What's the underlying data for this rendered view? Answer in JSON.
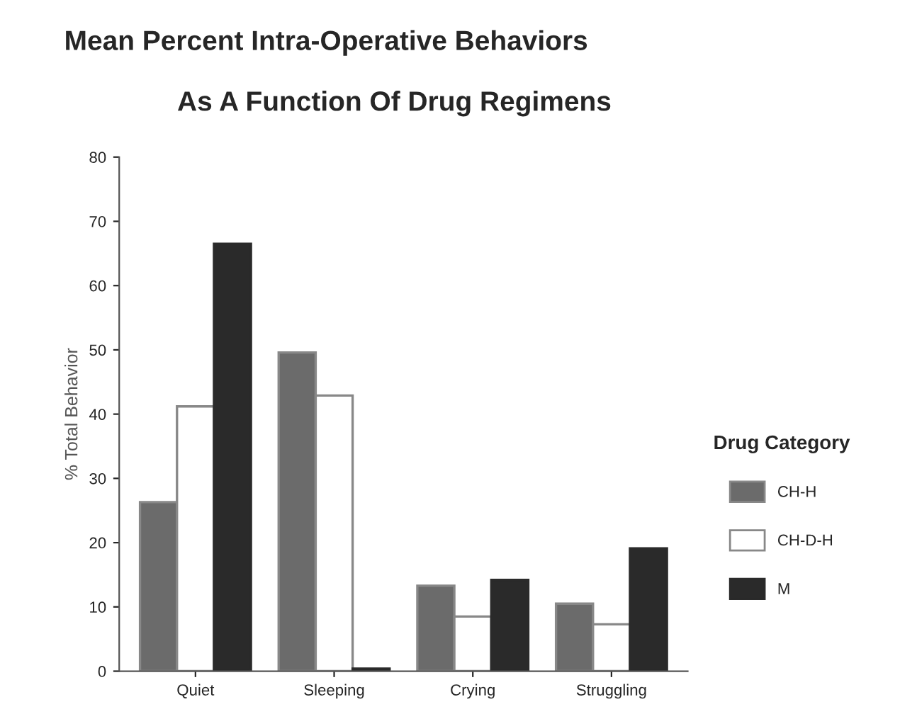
{
  "chart_data": {
    "type": "bar",
    "title": "Mean Percent Intra-Operative Behaviors",
    "subtitle": "As A Function Of Drug Regimens",
    "ylabel": "% Total Behavior",
    "legend_title": "Drug Category",
    "categories": [
      "Quiet",
      "Sleeping",
      "Crying",
      "Struggling"
    ],
    "series": [
      {
        "name": "CH-H",
        "color": "#6b6b6b",
        "values": [
          26.3,
          49.6,
          13.3,
          10.5
        ]
      },
      {
        "name": "CH-D-H",
        "color": "#ffffff",
        "values": [
          41.2,
          42.9,
          8.5,
          7.3
        ]
      },
      {
        "name": "M",
        "color": "#2a2a2a",
        "values": [
          66.5,
          0.4,
          14.2,
          19.1
        ]
      }
    ],
    "ylim": [
      0,
      80
    ],
    "yticks": [
      0,
      10,
      20,
      30,
      40,
      50,
      60,
      70,
      80
    ],
    "grid": false,
    "legend": "right"
  }
}
